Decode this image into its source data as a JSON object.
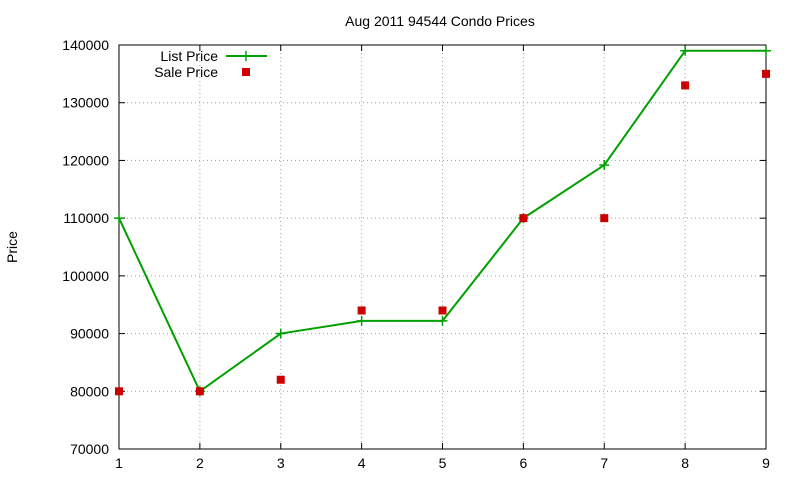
{
  "chart_data": {
    "type": "line",
    "title": "Aug 2011 94544 Condo Prices",
    "xlabel": "",
    "ylabel": "Price",
    "xlim": [
      1,
      9
    ],
    "ylim": [
      70000,
      140000
    ],
    "x_ticks": [
      1,
      2,
      3,
      4,
      5,
      6,
      7,
      8,
      9
    ],
    "y_ticks": [
      70000,
      80000,
      90000,
      100000,
      110000,
      120000,
      130000,
      140000
    ],
    "grid": true,
    "legend_position": "top-left",
    "series": [
      {
        "name": "List Price",
        "style": "linespoints",
        "marker": "plus",
        "color": "#00a000",
        "x": [
          1,
          2,
          3,
          4,
          5,
          6,
          7,
          8,
          9
        ],
        "y": [
          110000,
          80000,
          90000,
          92200,
          92200,
          110000,
          119200,
          139000,
          139000
        ]
      },
      {
        "name": "Sale Price",
        "style": "points",
        "marker": "square",
        "color": "#cc0000",
        "x": [
          1,
          2,
          3,
          4,
          5,
          6,
          7,
          8,
          9
        ],
        "y": [
          80000,
          80000,
          82000,
          94000,
          94000,
          110000,
          110000,
          133000,
          135000
        ]
      }
    ]
  }
}
